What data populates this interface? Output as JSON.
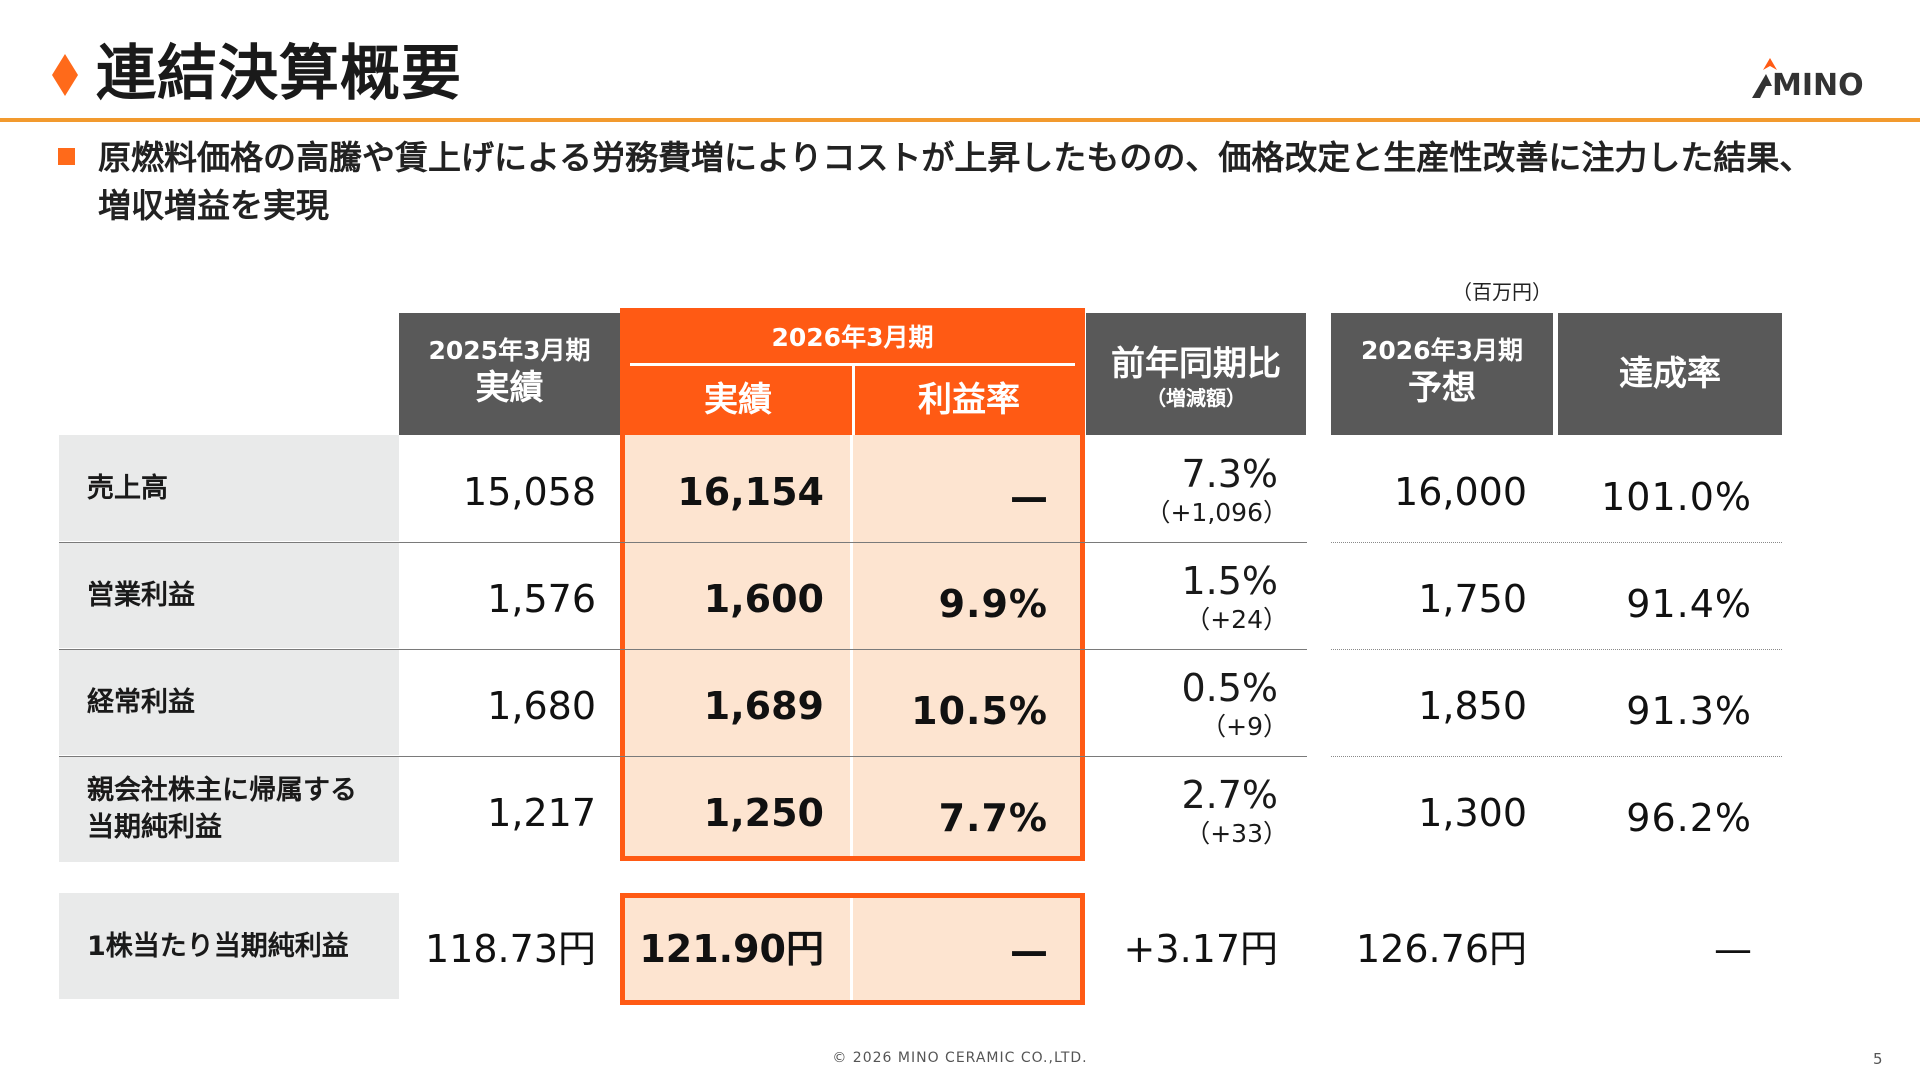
{
  "header": {
    "title": "連結決算概要",
    "logo_text": "MINO",
    "colors": {
      "accent": "#FF5A14",
      "rule": "#F29A2E",
      "header_cell": "#595959",
      "highlight": "#FDE4D0",
      "label_bg": "#E9EAEA"
    }
  },
  "summary": {
    "text": "原燃料価格の高騰や賃上げによる労務費増によりコストが上昇したものの、価格改定と生産性改善に注力した結果、増収増益を実現"
  },
  "table": {
    "unit": "（百万円）",
    "columns": {
      "prev": {
        "period": "2025年3月期",
        "label": "実績"
      },
      "current": {
        "period": "2026年3月期",
        "actual": "実績",
        "margin": "利益率"
      },
      "yoy": {
        "label": "前年同期比",
        "sub": "（増減額）"
      },
      "forecast": {
        "period": "2026年3月期",
        "label": "予想"
      },
      "achievement": {
        "label": "達成率"
      }
    },
    "rows": [
      {
        "label": "売上高",
        "prev": "15,058",
        "actual": "16,154",
        "margin": "—",
        "yoy_pct": "7.3%",
        "yoy_diff": "（+1,096）",
        "forecast": "16,000",
        "achievement": "101.0%"
      },
      {
        "label": "営業利益",
        "prev": "1,576",
        "actual": "1,600",
        "margin": "9.9%",
        "yoy_pct": "1.5%",
        "yoy_diff": "（+24）",
        "forecast": "1,750",
        "achievement": "91.4%"
      },
      {
        "label": "経常利益",
        "prev": "1,680",
        "actual": "1,689",
        "margin": "10.5%",
        "yoy_pct": "0.5%",
        "yoy_diff": "（+9）",
        "forecast": "1,850",
        "achievement": "91.3%"
      },
      {
        "label_line1": "親会社株主に帰属する",
        "label_line2": "当期純利益",
        "prev": "1,217",
        "actual": "1,250",
        "margin": "7.7%",
        "yoy_pct": "2.7%",
        "yoy_diff": "（+33）",
        "forecast": "1,300",
        "achievement": "96.2%"
      }
    ],
    "eps": {
      "label": "1株当たり当期純利益",
      "prev": "118.73円",
      "actual": "121.90円",
      "margin": "—",
      "yoy": "+3.17円",
      "forecast": "126.76円",
      "achievement": "—"
    }
  },
  "footer": {
    "copyright": "© 2026 MINO CERAMIC CO.,LTD.",
    "page": "5"
  }
}
